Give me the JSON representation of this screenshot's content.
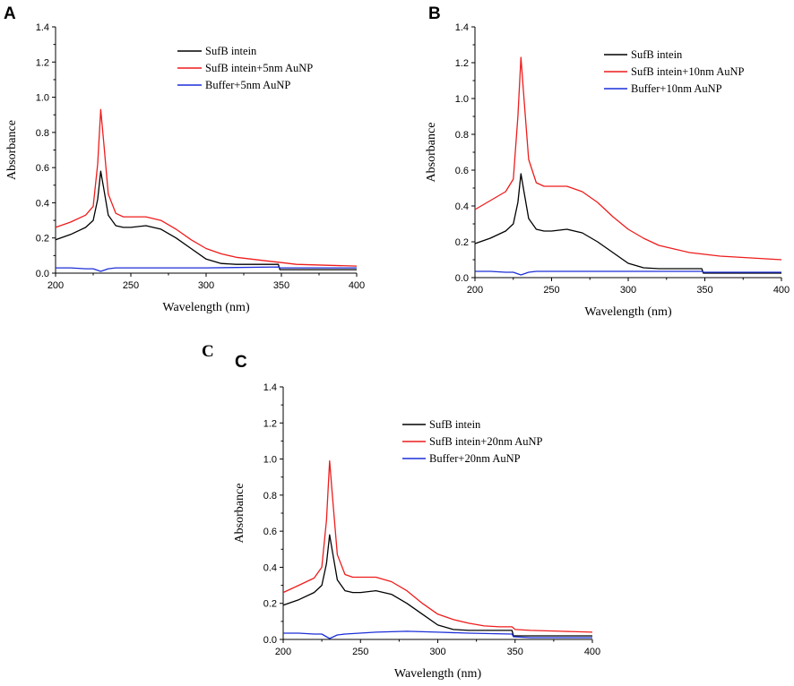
{
  "extra_label": "C",
  "colors": {
    "black": "#000000",
    "red": "#ee1c1c",
    "blue": "#1c2fd8"
  },
  "chart_data": [
    {
      "panel": "A",
      "type": "line",
      "xlabel": "Wavelength (nm)",
      "ylabel": "Absorbance",
      "xlim": [
        200,
        400
      ],
      "ylim": [
        0,
        1.4
      ],
      "xticks": [
        "200",
        "250",
        "300",
        "350",
        "400"
      ],
      "yticks": [
        "0.0",
        "0.2",
        "0.4",
        "0.6",
        "0.8",
        "1.0",
        "1.2",
        "1.4"
      ],
      "series": [
        {
          "name": "SufB intein",
          "color": "black",
          "x": [
            200,
            210,
            220,
            225,
            228,
            230,
            232,
            235,
            240,
            245,
            250,
            260,
            270,
            280,
            290,
            300,
            310,
            320,
            330,
            340,
            348,
            349,
            360,
            380,
            400
          ],
          "y": [
            0.19,
            0.22,
            0.26,
            0.3,
            0.42,
            0.58,
            0.48,
            0.33,
            0.27,
            0.26,
            0.26,
            0.27,
            0.25,
            0.2,
            0.14,
            0.08,
            0.055,
            0.05,
            0.05,
            0.05,
            0.05,
            0.02,
            0.02,
            0.02,
            0.02
          ]
        },
        {
          "name": "SufB intein+5nm AuNP",
          "color": "red",
          "x": [
            200,
            210,
            220,
            225,
            228,
            230,
            232,
            235,
            240,
            245,
            250,
            260,
            270,
            280,
            290,
            300,
            310,
            320,
            330,
            340,
            350,
            360,
            380,
            400
          ],
          "y": [
            0.26,
            0.29,
            0.33,
            0.38,
            0.62,
            0.93,
            0.74,
            0.45,
            0.34,
            0.32,
            0.32,
            0.32,
            0.3,
            0.25,
            0.19,
            0.14,
            0.11,
            0.09,
            0.08,
            0.07,
            0.06,
            0.05,
            0.045,
            0.04
          ]
        },
        {
          "name": "Buffer+5nm AuNP",
          "color": "blue",
          "x": [
            200,
            210,
            220,
            225,
            230,
            235,
            240,
            260,
            300,
            348,
            349,
            360,
            400
          ],
          "y": [
            0.03,
            0.03,
            0.025,
            0.025,
            0.01,
            0.025,
            0.03,
            0.03,
            0.03,
            0.035,
            0.03,
            0.03,
            0.03
          ]
        }
      ]
    },
    {
      "panel": "B",
      "type": "line",
      "xlabel": "Wavelength (nm)",
      "ylabel": "Absorbance",
      "xlim": [
        200,
        400
      ],
      "ylim": [
        0,
        1.4
      ],
      "xticks": [
        "200",
        "250",
        "300",
        "350",
        "400"
      ],
      "yticks": [
        "0.0",
        "0.2",
        "0.4",
        "0.6",
        "0.8",
        "1.0",
        "1.2",
        "1.4"
      ],
      "series": [
        {
          "name": "SufB intein",
          "color": "black",
          "x": [
            200,
            210,
            220,
            225,
            228,
            230,
            232,
            235,
            240,
            245,
            250,
            260,
            270,
            280,
            290,
            300,
            310,
            320,
            330,
            340,
            348,
            349,
            360,
            380,
            400
          ],
          "y": [
            0.19,
            0.22,
            0.26,
            0.3,
            0.42,
            0.58,
            0.48,
            0.33,
            0.27,
            0.26,
            0.26,
            0.27,
            0.25,
            0.2,
            0.14,
            0.08,
            0.055,
            0.05,
            0.05,
            0.05,
            0.05,
            0.025,
            0.025,
            0.025,
            0.025
          ]
        },
        {
          "name": "SufB intein+10nm AuNP",
          "color": "red",
          "x": [
            200,
            210,
            220,
            225,
            228,
            230,
            232,
            235,
            240,
            245,
            250,
            260,
            270,
            280,
            290,
            300,
            310,
            320,
            330,
            340,
            350,
            360,
            380,
            400
          ],
          "y": [
            0.38,
            0.43,
            0.48,
            0.55,
            0.9,
            1.23,
            1.0,
            0.66,
            0.53,
            0.51,
            0.51,
            0.51,
            0.48,
            0.42,
            0.34,
            0.27,
            0.22,
            0.18,
            0.16,
            0.14,
            0.13,
            0.12,
            0.11,
            0.1
          ]
        },
        {
          "name": "Buffer+10nm AuNP",
          "color": "blue",
          "x": [
            200,
            210,
            220,
            225,
            230,
            235,
            240,
            260,
            300,
            348,
            349,
            360,
            400
          ],
          "y": [
            0.035,
            0.035,
            0.03,
            0.03,
            0.015,
            0.03,
            0.035,
            0.035,
            0.035,
            0.035,
            0.03,
            0.03,
            0.03
          ]
        }
      ]
    },
    {
      "panel": "C",
      "type": "line",
      "xlabel": "Wavelength (nm)",
      "ylabel": "Absorbance",
      "xlim": [
        200,
        400
      ],
      "ylim": [
        0,
        1.4
      ],
      "xticks": [
        "200",
        "250",
        "300",
        "350",
        "400"
      ],
      "yticks": [
        "0.0",
        "0.2",
        "0.4",
        "0.6",
        "0.8",
        "1.0",
        "1.2",
        "1.4"
      ],
      "series": [
        {
          "name": "SufB intein",
          "color": "black",
          "x": [
            200,
            210,
            220,
            225,
            228,
            230,
            232,
            235,
            240,
            245,
            250,
            260,
            270,
            280,
            290,
            300,
            310,
            320,
            330,
            340,
            348,
            349,
            360,
            380,
            400
          ],
          "y": [
            0.19,
            0.22,
            0.26,
            0.3,
            0.42,
            0.58,
            0.48,
            0.33,
            0.27,
            0.26,
            0.26,
            0.27,
            0.25,
            0.2,
            0.14,
            0.08,
            0.055,
            0.05,
            0.05,
            0.05,
            0.05,
            0.02,
            0.02,
            0.02,
            0.02
          ]
        },
        {
          "name": "SufB intein+20nm AuNP",
          "color": "red",
          "x": [
            200,
            210,
            220,
            225,
            228,
            230,
            232,
            235,
            240,
            245,
            250,
            260,
            270,
            280,
            290,
            300,
            310,
            320,
            330,
            340,
            348,
            350,
            360,
            380,
            400
          ],
          "y": [
            0.26,
            0.3,
            0.34,
            0.4,
            0.66,
            0.99,
            0.78,
            0.47,
            0.36,
            0.345,
            0.345,
            0.345,
            0.32,
            0.27,
            0.2,
            0.14,
            0.11,
            0.09,
            0.075,
            0.07,
            0.07,
            0.055,
            0.05,
            0.045,
            0.04
          ]
        },
        {
          "name": "Buffer+20nm AuNP",
          "color": "blue",
          "x": [
            200,
            210,
            220,
            225,
            230,
            235,
            240,
            260,
            280,
            300,
            320,
            348,
            349,
            360,
            400
          ],
          "y": [
            0.035,
            0.035,
            0.03,
            0.03,
            0.005,
            0.025,
            0.03,
            0.04,
            0.045,
            0.04,
            0.035,
            0.03,
            0.015,
            0.01,
            0.01
          ]
        }
      ]
    }
  ]
}
